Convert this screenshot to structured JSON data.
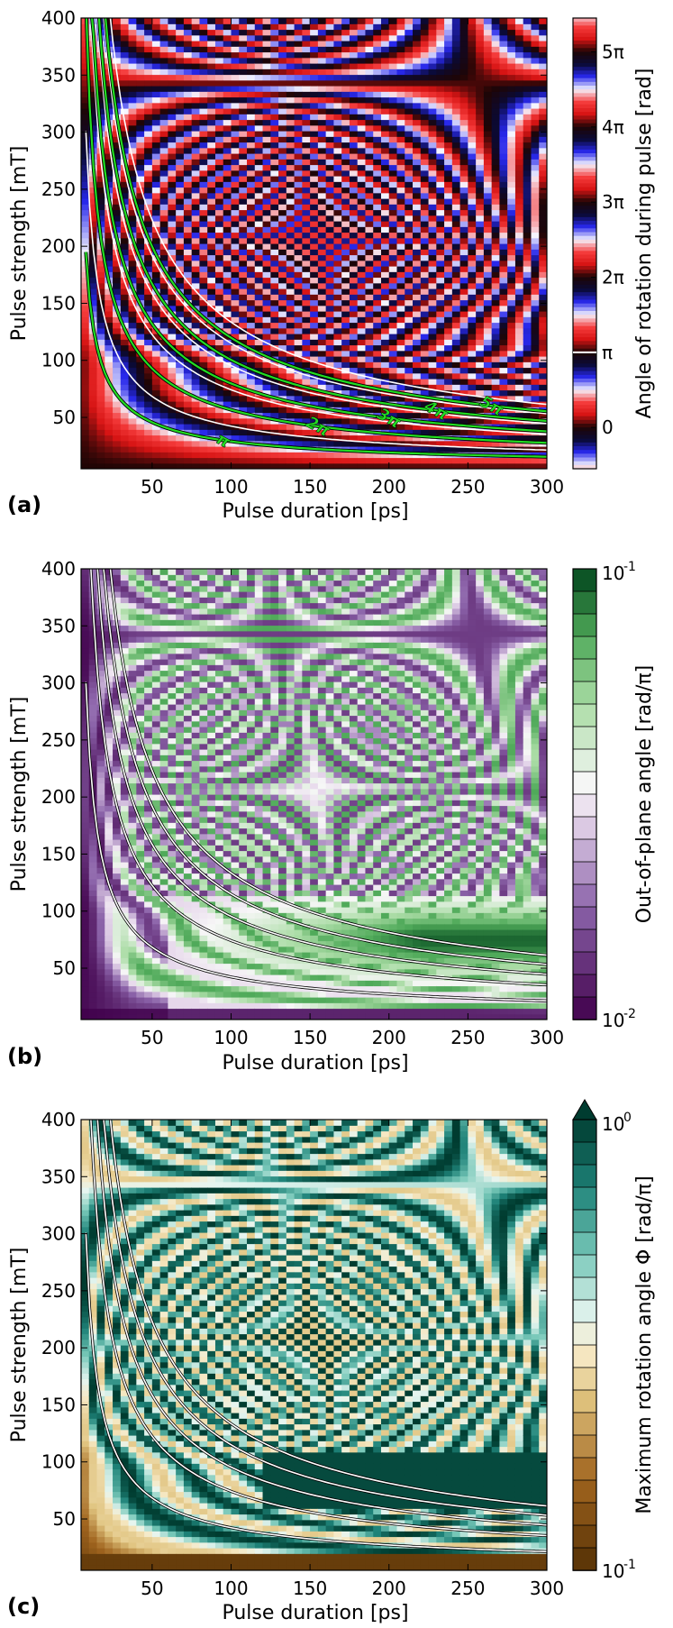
{
  "chart_data": [
    {
      "type": "heatmap",
      "panel_label": "(a)",
      "xlabel": "Pulse duration [ps]",
      "ylabel": "Pulse strength [mT]",
      "xlim": [
        5,
        300
      ],
      "ylim": [
        5,
        400
      ],
      "xticks": [
        "50",
        "100",
        "150",
        "200",
        "250",
        "300"
      ],
      "xtick_values": [
        50,
        100,
        150,
        200,
        250,
        300
      ],
      "yticks": [
        "50",
        "100",
        "150",
        "200",
        "250",
        "300",
        "350",
        "400"
      ],
      "ytick_values": [
        50,
        100,
        150,
        200,
        250,
        300,
        350,
        400
      ],
      "colorbar": {
        "label": "Angle of rotation during pulse [rad]",
        "scale": "linear",
        "range_pi": [
          -0.55,
          5.45
        ],
        "ticks": [
          "0",
          "π",
          "2π",
          "3π",
          "4π",
          "5π"
        ],
        "tick_values_pi": [
          0,
          1,
          2,
          3,
          4,
          5
        ],
        "colormap": "seismic-cyclic"
      },
      "contours": [
        {
          "label": "π",
          "k": 1,
          "color": "#22dd22"
        },
        {
          "label": "2π",
          "k": 2,
          "color": "#22dd22"
        },
        {
          "label": "3π",
          "k": 3,
          "color": "#22dd22"
        },
        {
          "label": "4π",
          "k": 4,
          "color": "#22dd22"
        },
        {
          "label": "5π",
          "k": 5,
          "color": "#22dd22"
        }
      ],
      "white_lines": [
        1,
        2.3,
        3.3,
        4.3,
        5.3
      ]
    },
    {
      "type": "heatmap",
      "panel_label": "(b)",
      "xlabel": "Pulse duration [ps]",
      "ylabel": "Pulse strength [mT]",
      "xlim": [
        5,
        300
      ],
      "ylim": [
        5,
        400
      ],
      "xticks": [
        "50",
        "100",
        "150",
        "200",
        "250",
        "300"
      ],
      "xtick_values": [
        50,
        100,
        150,
        200,
        250,
        300
      ],
      "yticks": [
        "50",
        "100",
        "150",
        "200",
        "250",
        "300",
        "350",
        "400"
      ],
      "ytick_values": [
        50,
        100,
        150,
        200,
        250,
        300,
        350,
        400
      ],
      "colorbar": {
        "label": "Out-of-plane angle [rad/π]",
        "scale": "log",
        "range": [
          0.01,
          0.1
        ],
        "ticks": [
          "10",
          "10"
        ],
        "tick_exponents": [
          "-1",
          "-2"
        ],
        "colormap": "PRGn"
      },
      "white_lines": [
        1,
        2.3,
        3.3,
        4.3,
        5.3
      ]
    },
    {
      "type": "heatmap",
      "panel_label": "(c)",
      "xlabel": "Pulse duration [ps]",
      "ylabel": "Pulse strength [mT]",
      "xlim": [
        5,
        300
      ],
      "ylim": [
        5,
        400
      ],
      "xticks": [
        "50",
        "100",
        "150",
        "200",
        "250",
        "300"
      ],
      "xtick_values": [
        50,
        100,
        150,
        200,
        250,
        300
      ],
      "yticks": [
        "50",
        "100",
        "150",
        "200",
        "250",
        "300",
        "350",
        "400"
      ],
      "ytick_values": [
        50,
        100,
        150,
        200,
        250,
        300,
        350,
        400
      ],
      "colorbar": {
        "label": "Maximum rotation angle Φ [rad/π]",
        "scale": "log",
        "range": [
          0.1,
          1
        ],
        "ticks": [
          "10",
          "10"
        ],
        "tick_exponents": [
          "0",
          "-1"
        ],
        "colormap": "BrBG",
        "extend": "max"
      },
      "white_lines": [
        1,
        2.3,
        3.3,
        4.3,
        5.3
      ]
    }
  ]
}
